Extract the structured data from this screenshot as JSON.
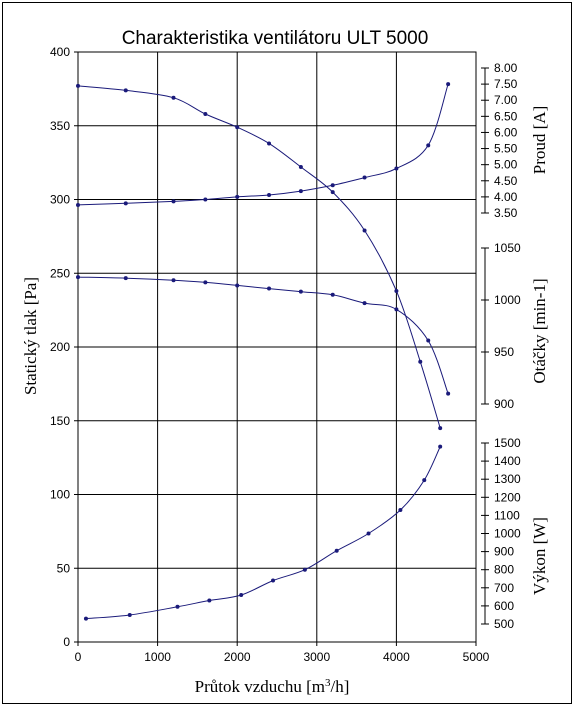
{
  "chart_data": {
    "type": "line",
    "title": "Charakteristika ventilátoru ULT 5000",
    "xlabel": "Průtok vzduchu [m³/h]",
    "ylabel": "Statický tlak [Pa]",
    "xlim": [
      0,
      5000
    ],
    "xticks": [
      "0",
      "1000",
      "2000",
      "3000",
      "4000",
      "5000"
    ],
    "ylim": [
      0,
      400
    ],
    "yticks": [
      "0",
      "50",
      "100",
      "150",
      "200",
      "250",
      "300",
      "350",
      "400"
    ],
    "grid": true,
    "right_axes": [
      {
        "label": "Proud [A]",
        "ylim": [
          3.5,
          8.0
        ],
        "ticks": [
          "3.50",
          "4.00",
          "4.50",
          "5.00",
          "5.50",
          "6.00",
          "6.50",
          "7.00",
          "7.50",
          "8.00"
        ]
      },
      {
        "label": "Otáčky [min-1]",
        "ylim": [
          900,
          1050
        ],
        "ticks": [
          "900",
          "950",
          "1000",
          "1050"
        ]
      },
      {
        "label": "Výkon [W]",
        "ylim": [
          500,
          1500
        ],
        "ticks": [
          "500",
          "600",
          "700",
          "800",
          "900",
          "1000",
          "1100",
          "1200",
          "1300",
          "1400",
          "1500"
        ]
      }
    ],
    "series": [
      {
        "axis": "left",
        "x": [
          0,
          600,
          1200,
          1600,
          2000,
          2400,
          2800,
          3200,
          3600,
          4000,
          4300,
          4550
        ],
        "values": [
          377,
          374,
          369,
          358,
          349,
          338,
          322,
          305,
          279,
          238,
          190,
          145
        ]
      },
      {
        "axis": "Proud [A]",
        "x": [
          0,
          600,
          1200,
          1600,
          2000,
          2400,
          2800,
          3200,
          3600,
          4000,
          4400,
          4650
        ],
        "values": [
          3.75,
          3.8,
          3.86,
          3.92,
          4.0,
          4.06,
          4.18,
          4.36,
          4.6,
          4.88,
          5.6,
          7.5
        ]
      },
      {
        "axis": "Otáčky [min-1]",
        "x": [
          0,
          600,
          1200,
          1600,
          2000,
          2400,
          2800,
          3200,
          3600,
          4000,
          4400,
          4650
        ],
        "values": [
          1022,
          1021,
          1019,
          1017,
          1014,
          1011,
          1008,
          1005,
          997,
          991,
          961,
          910
        ]
      },
      {
        "axis": "Výkon [W]",
        "x": [
          100,
          650,
          1250,
          1650,
          2050,
          2450,
          2850,
          3250,
          3650,
          4050,
          4350,
          4550
        ],
        "values": [
          530,
          550,
          595,
          630,
          660,
          740,
          800,
          905,
          1000,
          1130,
          1295,
          1480
        ]
      }
    ]
  }
}
